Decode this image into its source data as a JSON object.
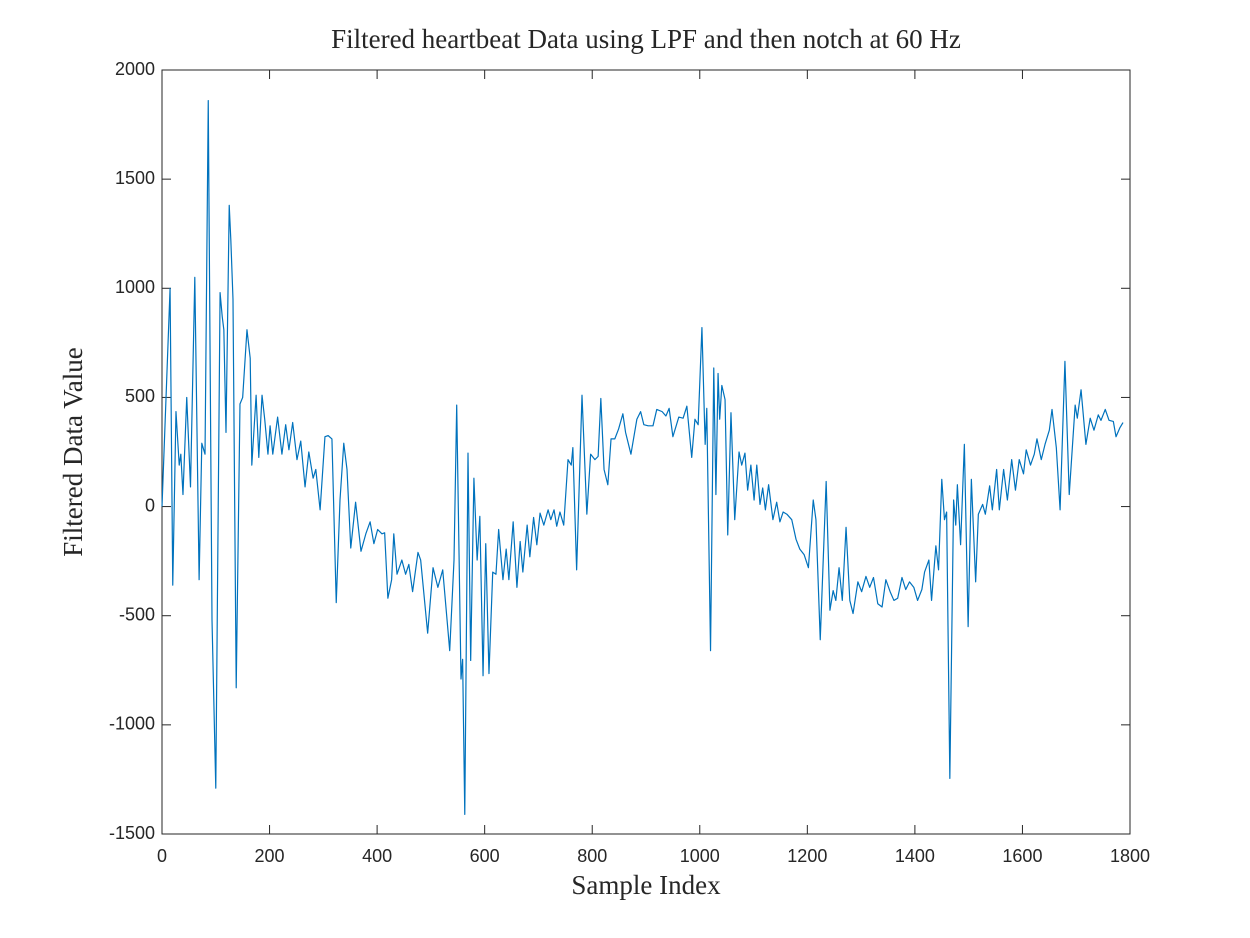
{
  "chart_data": {
    "type": "line",
    "title": "Filtered heartbeat Data using LPF and then notch at 60 Hz",
    "x_label": "Sample Index",
    "y_label": "Filtered Data Value",
    "color": "#0072bd",
    "xlim": [
      0,
      1800
    ],
    "ylim": [
      -1500,
      2000
    ],
    "xticks": [
      0,
      200,
      400,
      600,
      800,
      1000,
      1200,
      1400,
      1600,
      1800
    ],
    "yticks": [
      -1500,
      -1000,
      -500,
      0,
      500,
      1000,
      1500,
      2000
    ],
    "x": [
      0,
      15,
      20,
      26,
      32,
      35,
      39,
      46,
      53,
      61,
      69,
      74,
      80,
      86,
      93,
      100,
      108,
      112,
      115,
      119,
      125,
      128,
      132,
      138,
      145,
      150,
      158,
      164,
      167,
      175,
      180,
      186,
      191,
      197,
      201,
      206,
      215,
      223,
      230,
      236,
      243,
      251,
      258,
      266,
      273,
      281,
      286,
      294,
      303,
      309,
      316,
      324,
      331,
      338,
      344,
      351,
      360,
      370,
      379,
      387,
      394,
      401,
      409,
      414,
      420,
      427,
      431,
      437,
      446,
      453,
      459,
      466,
      476,
      481,
      494,
      504,
      513,
      522,
      535,
      543,
      548,
      556,
      559,
      563,
      569,
      574,
      580,
      586,
      591,
      597,
      602,
      608,
      615,
      621,
      626,
      634,
      640,
      645,
      653,
      660,
      666,
      671,
      679,
      684,
      691,
      697,
      703,
      710,
      718,
      723,
      729,
      734,
      740,
      747,
      755,
      761,
      764,
      771,
      781,
      790,
      797,
      805,
      811,
      816,
      822,
      829,
      835,
      842,
      849,
      857,
      862,
      872,
      883,
      890,
      896,
      904,
      913,
      920,
      930,
      937,
      943,
      950,
      961,
      969,
      976,
      985,
      991,
      997,
      1004,
      1010,
      1013,
      1020,
      1026,
      1030,
      1034,
      1037,
      1041,
      1047,
      1052,
      1058,
      1065,
      1073,
      1078,
      1084,
      1089,
      1095,
      1101,
      1106,
      1112,
      1117,
      1122,
      1128,
      1136,
      1143,
      1149,
      1155,
      1162,
      1171,
      1179,
      1186,
      1194,
      1202,
      1211,
      1216,
      1224,
      1235,
      1242,
      1248,
      1253,
      1259,
      1265,
      1272,
      1279,
      1285,
      1294,
      1301,
      1309,
      1316,
      1323,
      1331,
      1339,
      1346,
      1354,
      1361,
      1368,
      1376,
      1383,
      1390,
      1398,
      1405,
      1413,
      1418,
      1426,
      1431,
      1439,
      1444,
      1450,
      1455,
      1459,
      1465,
      1472,
      1476,
      1479,
      1485,
      1492,
      1499,
      1505,
      1513,
      1518,
      1526,
      1531,
      1539,
      1544,
      1552,
      1557,
      1565,
      1572,
      1580,
      1587,
      1594,
      1602,
      1607,
      1615,
      1622,
      1627,
      1635,
      1642,
      1650,
      1655,
      1663,
      1670,
      1679,
      1687,
      1698,
      1702,
      1709,
      1718,
      1726,
      1733,
      1741,
      1746,
      1754,
      1761,
      1769,
      1774,
      1781,
      1787
    ],
    "values": [
      0,
      1000,
      -360,
      435,
      190,
      240,
      55,
      500,
      90,
      1050,
      -335,
      290,
      240,
      1860,
      -520,
      -1290,
      980,
      870,
      810,
      340,
      1380,
      1220,
      950,
      -830,
      470,
      500,
      810,
      680,
      190,
      510,
      225,
      510,
      400,
      240,
      370,
      240,
      410,
      240,
      375,
      260,
      385,
      215,
      300,
      90,
      250,
      130,
      170,
      -15,
      320,
      325,
      310,
      -440,
      30,
      290,
      170,
      -190,
      20,
      -205,
      -125,
      -70,
      -170,
      -105,
      -125,
      -120,
      -420,
      -335,
      -125,
      -310,
      -245,
      -310,
      -265,
      -390,
      -210,
      -245,
      -580,
      -280,
      -370,
      -290,
      -660,
      -245,
      465,
      -790,
      -700,
      -1410,
      245,
      -705,
      130,
      -245,
      -45,
      -775,
      -170,
      -765,
      -300,
      -310,
      -105,
      -335,
      -195,
      -335,
      -70,
      -370,
      -160,
      -300,
      -85,
      -230,
      -50,
      -175,
      -30,
      -85,
      -15,
      -60,
      -15,
      -90,
      -25,
      -85,
      215,
      190,
      270,
      -290,
      510,
      -35,
      240,
      215,
      230,
      495,
      170,
      100,
      310,
      310,
      355,
      425,
      340,
      240,
      400,
      435,
      375,
      370,
      370,
      445,
      435,
      415,
      450,
      320,
      410,
      405,
      460,
      225,
      400,
      375,
      820,
      285,
      450,
      -660,
      635,
      55,
      610,
      400,
      555,
      490,
      -130,
      430,
      -60,
      250,
      190,
      245,
      75,
      190,
      30,
      190,
      10,
      85,
      -15,
      100,
      -60,
      20,
      -70,
      -25,
      -35,
      -60,
      -150,
      -195,
      -220,
      -280,
      30,
      -60,
      -610,
      115,
      -475,
      -385,
      -430,
      -280,
      -430,
      -95,
      -430,
      -490,
      -345,
      -390,
      -320,
      -370,
      -325,
      -445,
      -460,
      -335,
      -390,
      -430,
      -420,
      -325,
      -380,
      -345,
      -370,
      -430,
      -380,
      -300,
      -245,
      -430,
      -180,
      -290,
      125,
      -60,
      -25,
      -1245,
      30,
      -85,
      100,
      -175,
      285,
      -550,
      125,
      -345,
      -35,
      10,
      -35,
      95,
      -15,
      170,
      -15,
      170,
      30,
      215,
      75,
      215,
      150,
      260,
      190,
      240,
      310,
      215,
      285,
      350,
      445,
      270,
      -15,
      665,
      55,
      465,
      405,
      535,
      285,
      405,
      350,
      420,
      395,
      445,
      395,
      390,
      320,
      360,
      385
    ]
  }
}
